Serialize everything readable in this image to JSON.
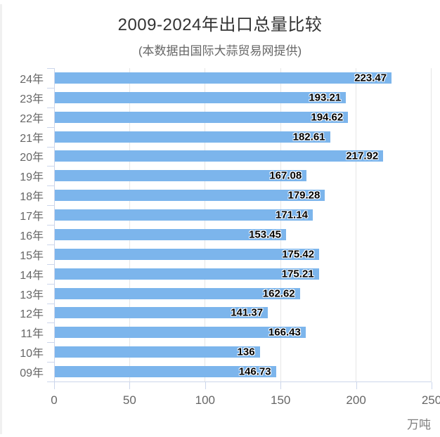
{
  "title": "2009-2024年出口总量比较",
  "subtitle": "(本数据由国际大蒜贸易网提供)",
  "chart_data": {
    "type": "bar",
    "orientation": "horizontal",
    "title": "2009-2024年出口总量比较",
    "subtitle": "(本数据由国际大蒜贸易网提供)",
    "categories": [
      "24年",
      "23年",
      "22年",
      "21年",
      "20年",
      "19年",
      "18年",
      "17年",
      "16年",
      "15年",
      "14年",
      "13年",
      "12年",
      "11年",
      "10年",
      "09年"
    ],
    "values": [
      223.47,
      193.21,
      194.62,
      182.61,
      217.92,
      167.08,
      179.28,
      171.14,
      153.45,
      175.42,
      175.21,
      162.62,
      141.37,
      166.43,
      136,
      146.73
    ],
    "value_labels": [
      "223.47",
      "193.21",
      "194.62",
      "182.61",
      "217.92",
      "167.08",
      "179.28",
      "171.14",
      "153.45",
      "175.42",
      "175.21",
      "162.62",
      "141.37",
      "166.43",
      "136",
      "146.73"
    ],
    "x_ticks": [
      0,
      50,
      100,
      150,
      200,
      250
    ],
    "xlim": [
      0,
      250
    ],
    "xlabel": "万吨",
    "grid": true,
    "legend": "none",
    "colors": {
      "bar": "#7cb5ec",
      "grid": "#e6e6e6",
      "axis": "#ccd6eb",
      "axis_label": "#666666",
      "title": "#333333",
      "subtitle": "#666666",
      "data_label": "#000000"
    }
  }
}
